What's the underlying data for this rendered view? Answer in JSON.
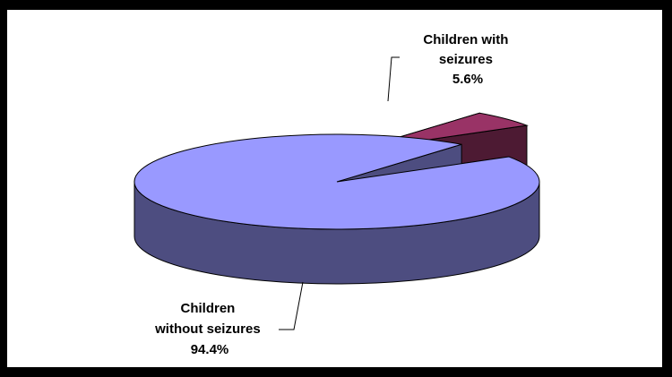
{
  "chart_data": {
    "type": "pie",
    "style": "3d-exploded",
    "slices": [
      {
        "label_lines": [
          "Children with",
          "seizures"
        ],
        "value": 5.6,
        "value_label": "5.6%",
        "top_color": "#993366",
        "side_color": "#4d1a33",
        "exploded": true
      },
      {
        "label_lines": [
          "Children",
          "without seizures"
        ],
        "value": 94.4,
        "value_label": "94.4%",
        "top_color": "#9999ff",
        "side_color": "#4d4d80",
        "exploded": false
      }
    ]
  }
}
